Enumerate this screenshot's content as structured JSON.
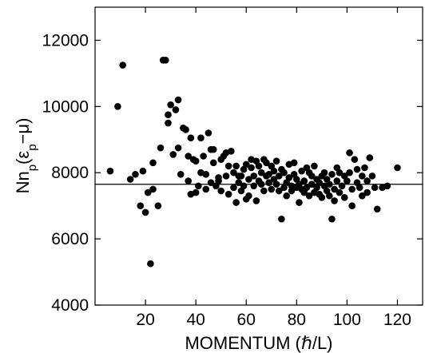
{
  "chart_data": {
    "type": "scatter",
    "title": "",
    "xlabel": "MOMENTUM (ℏ/L)",
    "ylabel_main": "Nn",
    "ylabel_sub1": "p",
    "ylabel_mid": "(ε",
    "ylabel_sub2": "p",
    "ylabel_tail": "−μ)",
    "xlim": [
      0,
      130
    ],
    "ylim": [
      4000,
      13000
    ],
    "xticks": [
      20,
      40,
      60,
      80,
      100,
      120
    ],
    "yticks": [
      4000,
      6000,
      8000,
      10000,
      12000
    ],
    "xtick_labels": [
      "20",
      "40",
      "60",
      "80",
      "100",
      "120"
    ],
    "ytick_labels": [
      "4000",
      "6000",
      "8000",
      "10000",
      "12000"
    ],
    "reference_line_y": 7650,
    "grid": false,
    "legend": "none",
    "colors": {
      "marker": "#000000",
      "line": "#000000",
      "background": "#ffffff"
    },
    "points": [
      [
        6,
        8050
      ],
      [
        9,
        10000
      ],
      [
        11,
        11250
      ],
      [
        14,
        7800
      ],
      [
        16,
        7950
      ],
      [
        18,
        7000
      ],
      [
        20,
        6800
      ],
      [
        19,
        8050
      ],
      [
        21,
        7400
      ],
      [
        22,
        5250
      ],
      [
        23,
        7500
      ],
      [
        23,
        8300
      ],
      [
        25,
        7000
      ],
      [
        26,
        8750
      ],
      [
        27,
        11400
      ],
      [
        28,
        11400
      ],
      [
        29,
        9750
      ],
      [
        29,
        9500
      ],
      [
        30,
        10050
      ],
      [
        31,
        8550
      ],
      [
        32,
        9900
      ],
      [
        33,
        10200
      ],
      [
        33,
        8750
      ],
      [
        34,
        7950
      ],
      [
        35,
        9350
      ],
      [
        36,
        9300
      ],
      [
        37,
        7750
      ],
      [
        37,
        8500
      ],
      [
        38,
        9050
      ],
      [
        38,
        7350
      ],
      [
        39,
        8400
      ],
      [
        40,
        8350
      ],
      [
        40,
        7400
      ],
      [
        41,
        7600
      ],
      [
        42,
        9050
      ],
      [
        42,
        8000
      ],
      [
        43,
        8500
      ],
      [
        44,
        7950
      ],
      [
        44,
        7500
      ],
      [
        45,
        9200
      ],
      [
        46,
        8700
      ],
      [
        46,
        7700
      ],
      [
        47,
        8700
      ],
      [
        47,
        8300
      ],
      [
        48,
        7600
      ],
      [
        49,
        7850
      ],
      [
        49,
        7750
      ],
      [
        50,
        8400
      ],
      [
        50,
        7450
      ],
      [
        51,
        8500
      ],
      [
        52,
        8600
      ],
      [
        52,
        7900
      ],
      [
        53,
        8200
      ],
      [
        53,
        7350
      ],
      [
        54,
        8650
      ],
      [
        55,
        8000
      ],
      [
        55,
        7550
      ],
      [
        56,
        7100
      ],
      [
        56,
        8200
      ],
      [
        57,
        7700
      ],
      [
        57,
        7900
      ],
      [
        58,
        7450
      ],
      [
        58,
        7900
      ],
      [
        59,
        8100
      ],
      [
        59,
        7600
      ],
      [
        60,
        8250
      ],
      [
        60,
        7200
      ],
      [
        61,
        7800
      ],
      [
        61,
        7300
      ],
      [
        62,
        8150
      ],
      [
        62,
        8400
      ],
      [
        63,
        7600
      ],
      [
        63,
        7900
      ],
      [
        64,
        8350
      ],
      [
        64,
        7150
      ],
      [
        65,
        8200
      ],
      [
        65,
        7750
      ],
      [
        66,
        8000
      ],
      [
        66,
        7650
      ],
      [
        67,
        8400
      ],
      [
        67,
        7450
      ],
      [
        68,
        7900
      ],
      [
        68,
        8300
      ],
      [
        69,
        7700
      ],
      [
        69,
        7950
      ],
      [
        70,
        8200
      ],
      [
        70,
        7500
      ],
      [
        71,
        7800
      ],
      [
        71,
        8050
      ],
      [
        72,
        7650
      ],
      [
        72,
        8350
      ],
      [
        73,
        7450
      ],
      [
        73,
        7900
      ],
      [
        74,
        6600
      ],
      [
        74,
        8100
      ],
      [
        75,
        7550
      ],
      [
        75,
        8000
      ],
      [
        76,
        7300
      ],
      [
        76,
        7700
      ],
      [
        77,
        7850
      ],
      [
        77,
        8250
      ],
      [
        78,
        7600
      ],
      [
        78,
        7450
      ],
      [
        79,
        7950
      ],
      [
        79,
        8300
      ],
      [
        80,
        7550
      ],
      [
        80,
        7800
      ],
      [
        81,
        7100
      ],
      [
        81,
        7650
      ],
      [
        82,
        8050
      ],
      [
        82,
        7500
      ],
      [
        83,
        7750
      ],
      [
        83,
        7400
      ],
      [
        84,
        8150
      ],
      [
        84,
        7550
      ],
      [
        85,
        8000
      ],
      [
        85,
        7300
      ],
      [
        86,
        7900
      ],
      [
        86,
        7650
      ],
      [
        87,
        7400
      ],
      [
        87,
        8200
      ],
      [
        88,
        7800
      ],
      [
        88,
        7550
      ],
      [
        89,
        7350
      ],
      [
        89,
        7700
      ],
      [
        90,
        7900
      ],
      [
        90,
        7250
      ],
      [
        91,
        8000
      ],
      [
        91,
        7600
      ],
      [
        92,
        7450
      ],
      [
        92,
        7800
      ],
      [
        93,
        7650
      ],
      [
        93,
        7300
      ],
      [
        94,
        6600
      ],
      [
        94,
        7950
      ],
      [
        95,
        7500
      ],
      [
        95,
        7150
      ],
      [
        96,
        8150
      ],
      [
        96,
        7750
      ],
      [
        97,
        7400
      ],
      [
        97,
        8000
      ],
      [
        98,
        7600
      ],
      [
        99,
        7900
      ],
      [
        99,
        7250
      ],
      [
        100,
        7750
      ],
      [
        101,
        8600
      ],
      [
        101,
        8000
      ],
      [
        102,
        7500
      ],
      [
        102,
        7000
      ],
      [
        103,
        8400
      ],
      [
        104,
        7700
      ],
      [
        104,
        8100
      ],
      [
        105,
        7550
      ],
      [
        106,
        7900
      ],
      [
        106,
        7300
      ],
      [
        107,
        8150
      ],
      [
        108,
        7750
      ],
      [
        108,
        7400
      ],
      [
        109,
        8450
      ],
      [
        110,
        7900
      ],
      [
        111,
        7550
      ],
      [
        112,
        6900
      ],
      [
        114,
        7550
      ],
      [
        116,
        7600
      ],
      [
        120,
        8150
      ]
    ]
  }
}
